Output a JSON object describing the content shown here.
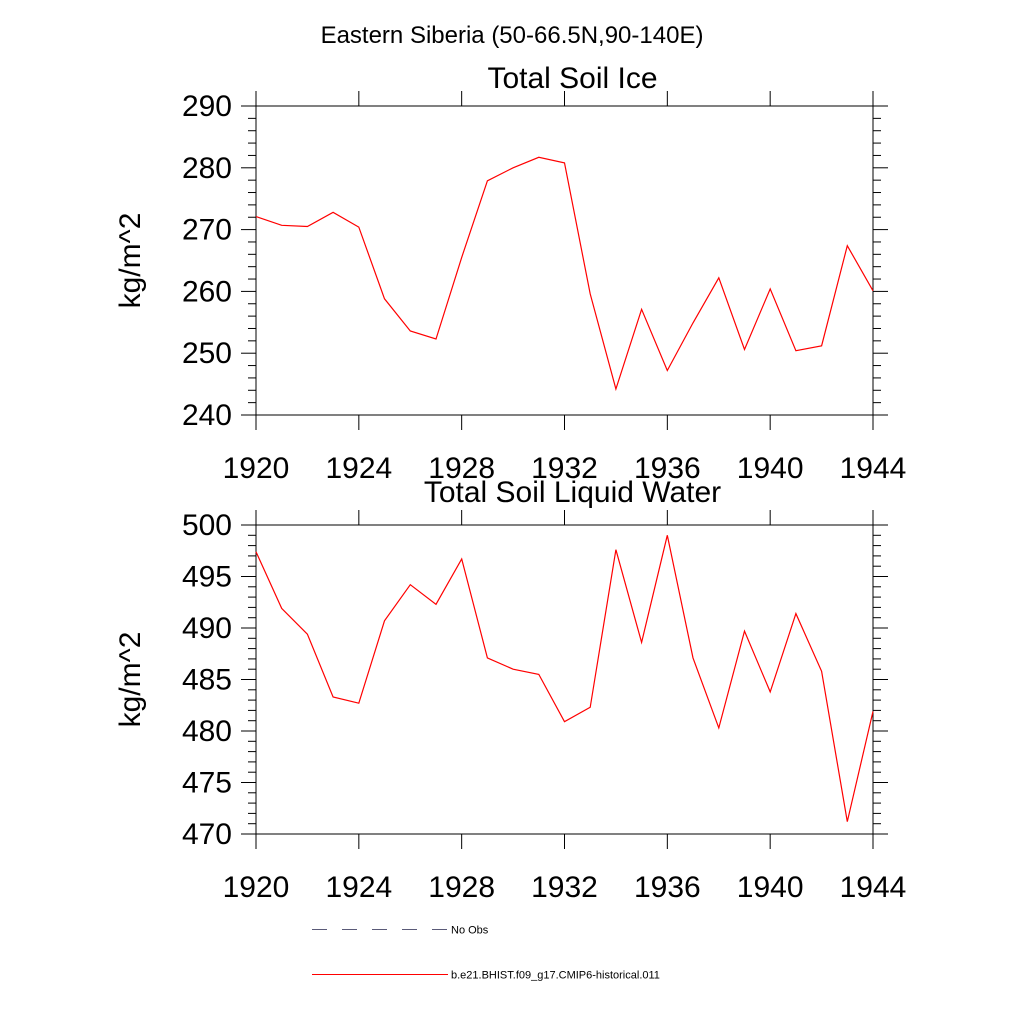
{
  "figure_title": "Eastern Siberia (50-66.5N,90-140E)",
  "legend": [
    {
      "label": "No Obs",
      "style": "dashed",
      "color": "#5a5a78"
    },
    {
      "label": "b.e21.BHIST.f09_g17.CMIP6-historical.011",
      "style": "solid",
      "color": "#ff0000"
    }
  ],
  "chart_data": [
    {
      "type": "line",
      "title": "Total Soil Ice",
      "xlabel": "",
      "ylabel": "kg/m^2",
      "xlim": [
        1920,
        1944
      ],
      "ylim": [
        240,
        290
      ],
      "x_ticks": [
        1920,
        1924,
        1928,
        1932,
        1936,
        1940,
        1944
      ],
      "y_ticks": [
        240,
        250,
        260,
        270,
        280,
        290
      ],
      "grid": false,
      "series": [
        {
          "name": "b.e21.BHIST.f09_g17.CMIP6-historical.011",
          "color": "#ff0000",
          "x": [
            1920,
            1921,
            1922,
            1923,
            1924,
            1925,
            1926,
            1927,
            1928,
            1929,
            1930,
            1931,
            1932,
            1933,
            1934,
            1935,
            1936,
            1937,
            1938,
            1939,
            1940,
            1941,
            1942,
            1943,
            1944
          ],
          "y": [
            272.1,
            270.7,
            270.5,
            272.8,
            270.4,
            258.8,
            253.6,
            252.3,
            265.5,
            277.9,
            280.0,
            281.7,
            280.8,
            259.6,
            244.2,
            257.1,
            247.2,
            254.9,
            262.2,
            250.6,
            260.4,
            250.4,
            251.2,
            267.4,
            260.1
          ]
        }
      ]
    },
    {
      "type": "line",
      "title": "Total Soil Liquid Water",
      "xlabel": "",
      "ylabel": "kg/m^2",
      "xlim": [
        1920,
        1944
      ],
      "ylim": [
        470,
        500
      ],
      "x_ticks": [
        1920,
        1924,
        1928,
        1932,
        1936,
        1940,
        1944
      ],
      "y_ticks": [
        470,
        475,
        480,
        485,
        490,
        495,
        500
      ],
      "grid": false,
      "series": [
        {
          "name": "b.e21.BHIST.f09_g17.CMIP6-historical.011",
          "color": "#ff0000",
          "x": [
            1920,
            1921,
            1922,
            1923,
            1924,
            1925,
            1926,
            1927,
            1928,
            1929,
            1930,
            1931,
            1932,
            1933,
            1934,
            1935,
            1936,
            1937,
            1938,
            1939,
            1940,
            1941,
            1942,
            1943,
            1944
          ],
          "y": [
            497.4,
            491.9,
            489.4,
            483.3,
            482.7,
            490.7,
            494.2,
            492.3,
            496.7,
            487.1,
            486.0,
            485.5,
            480.9,
            482.3,
            497.6,
            488.6,
            499.0,
            487.1,
            480.3,
            489.7,
            483.8,
            491.4,
            485.8,
            471.2,
            481.9
          ]
        }
      ]
    }
  ]
}
